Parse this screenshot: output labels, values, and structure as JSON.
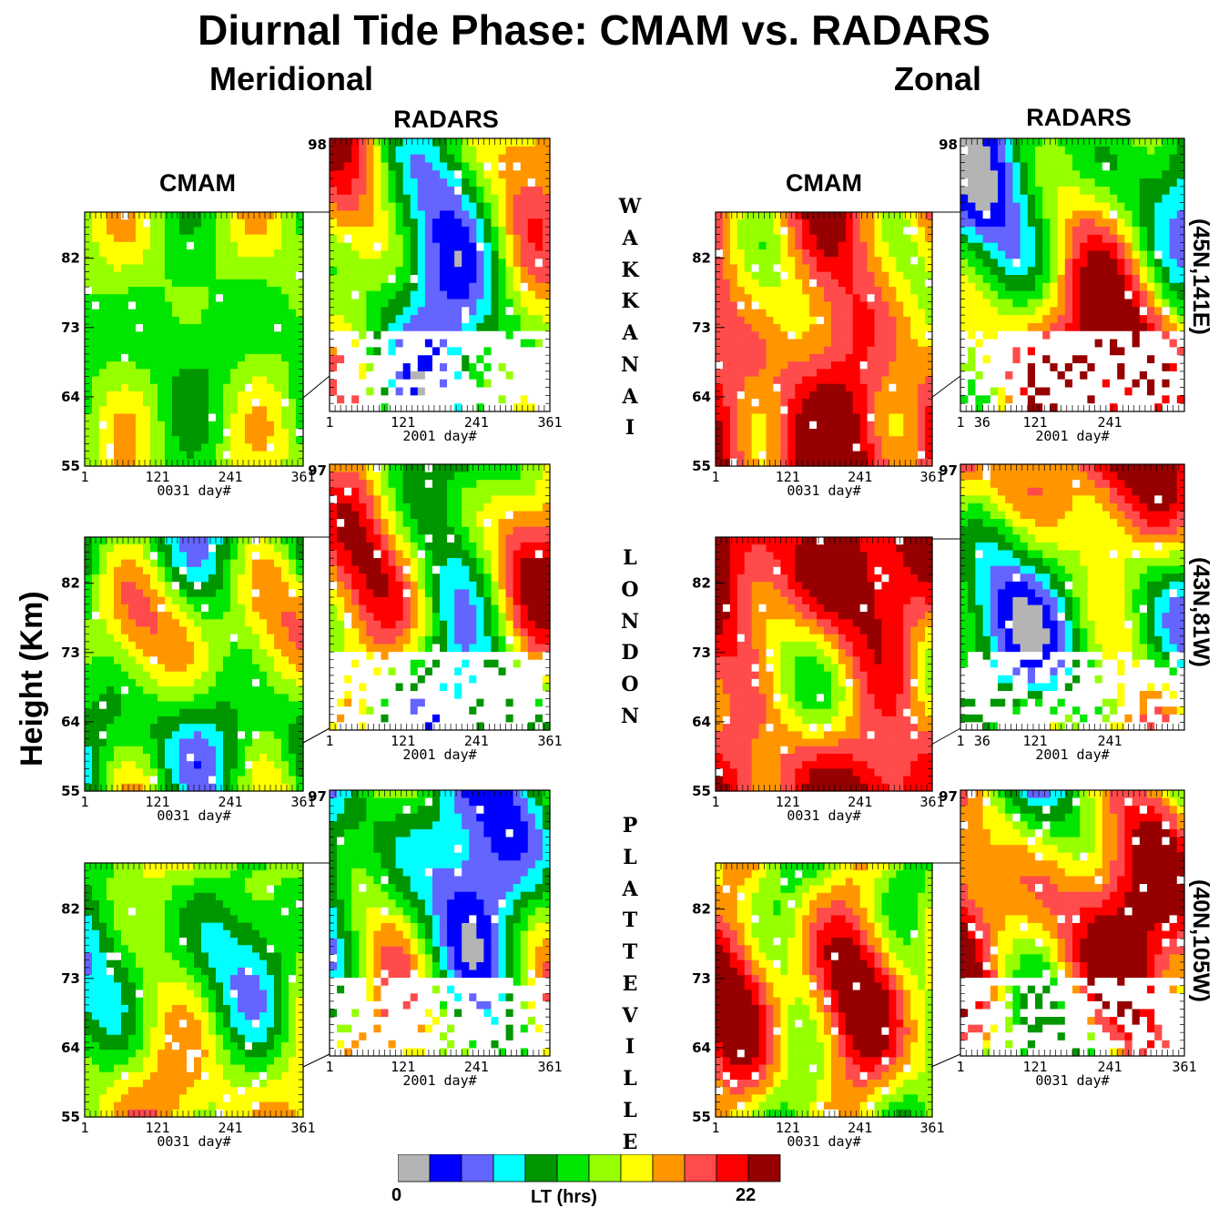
{
  "title": "Diurnal Tide Phase: CMAM vs. RADARS",
  "sections": {
    "meridional": "Meridional",
    "zonal": "Zonal"
  },
  "model_labels": {
    "cmam": "CMAM",
    "radars": "RADARS"
  },
  "y_axis_label": "Height  (Km)",
  "stations": [
    {
      "name": "WAKKANAI",
      "coords": "(45N,141E)"
    },
    {
      "name": "LONDON",
      "coords": "(43N,81W)"
    },
    {
      "name": "PLATTEVILLE",
      "coords": "(40N,105W)"
    }
  ],
  "colorbar": {
    "label": "LT (hrs)",
    "min_label": "0",
    "max_label": "22",
    "colors": [
      "#b4b4b4",
      "#0000ff",
      "#6464ff",
      "#00ffff",
      "#009600",
      "#00e600",
      "#96ff00",
      "#ffff00",
      "#ff9600",
      "#ff4b4b",
      "#ff0000",
      "#960000"
    ]
  },
  "chart_data": [
    {
      "type": "heatmap",
      "component": "Meridional",
      "source": "CMAM",
      "station": "WAKKANAI",
      "xlabel": "0031  day#",
      "xticks": [
        1,
        121,
        241,
        361
      ],
      "yticks": [
        55,
        64,
        73,
        82
      ],
      "ylim": [
        55,
        88
      ]
    },
    {
      "type": "heatmap",
      "component": "Meridional",
      "source": "RADARS",
      "station": "WAKKANAI",
      "xlabel": "2001  day#",
      "xticks": [
        1,
        121,
        241,
        361
      ],
      "ytop": "98",
      "ylim": [
        55,
        98
      ]
    },
    {
      "type": "heatmap",
      "component": "Zonal",
      "source": "CMAM",
      "station": "WAKKANAI",
      "xlabel": "0031  day#",
      "xticks": [
        1,
        121,
        241,
        361
      ],
      "yticks": [
        55,
        64,
        73,
        82
      ],
      "ylim": [
        55,
        88
      ]
    },
    {
      "type": "heatmap",
      "component": "Zonal",
      "source": "RADARS",
      "station": "WAKKANAI",
      "xlabel": "2001  day#",
      "xticks": [
        1,
        121,
        241,
        "36"
      ],
      "ytop": "98",
      "ylim": [
        55,
        98
      ]
    },
    {
      "type": "heatmap",
      "component": "Meridional",
      "source": "CMAM",
      "station": "LONDON",
      "xlabel": "0031  day#",
      "xticks": [
        1,
        121,
        241,
        361
      ],
      "yticks": [
        55,
        64,
        73,
        82
      ],
      "ylim": [
        55,
        88
      ]
    },
    {
      "type": "heatmap",
      "component": "Meridional",
      "source": "RADARS",
      "station": "LONDON",
      "xlabel": "2001  day#",
      "xticks": [
        1,
        121,
        241,
        361
      ],
      "ytop": "97",
      "ylim": [
        55,
        97
      ]
    },
    {
      "type": "heatmap",
      "component": "Zonal",
      "source": "CMAM",
      "station": "LONDON",
      "xlabel": "0031  day#",
      "xticks": [
        1,
        121,
        241,
        361
      ],
      "yticks": [
        55,
        64,
        73,
        82
      ],
      "ylim": [
        55,
        88
      ]
    },
    {
      "type": "heatmap",
      "component": "Zonal",
      "source": "RADARS",
      "station": "LONDON",
      "xlabel": "2001  day#",
      "xticks": [
        1,
        121,
        241,
        "36"
      ],
      "ytop": "97",
      "ylim": [
        55,
        97
      ]
    },
    {
      "type": "heatmap",
      "component": "Meridional",
      "source": "CMAM",
      "station": "PLATTEVILLE",
      "xlabel": "0031  day#",
      "xticks": [
        1,
        121,
        241,
        361
      ],
      "yticks": [
        55,
        64,
        73,
        82
      ],
      "ylim": [
        55,
        88
      ]
    },
    {
      "type": "heatmap",
      "component": "Meridional",
      "source": "RADARS",
      "station": "PLATTEVILLE",
      "xlabel": "2001  day#",
      "xticks": [
        1,
        121,
        241,
        361
      ],
      "ytop": "97",
      "ylim": [
        55,
        97
      ]
    },
    {
      "type": "heatmap",
      "component": "Zonal",
      "source": "CMAM",
      "station": "PLATTEVILLE",
      "xlabel": "0031  day#",
      "xticks": [
        1,
        121,
        241,
        361
      ],
      "yticks": [
        55,
        64,
        73,
        82
      ],
      "ylim": [
        55,
        88
      ]
    },
    {
      "type": "heatmap",
      "component": "Zonal",
      "source": "RADARS",
      "station": "PLATTEVILLE",
      "xlabel": "0031  day#",
      "xticks": [
        1,
        121,
        241,
        361
      ],
      "ytop": "97",
      "ylim": [
        55,
        97
      ]
    }
  ]
}
